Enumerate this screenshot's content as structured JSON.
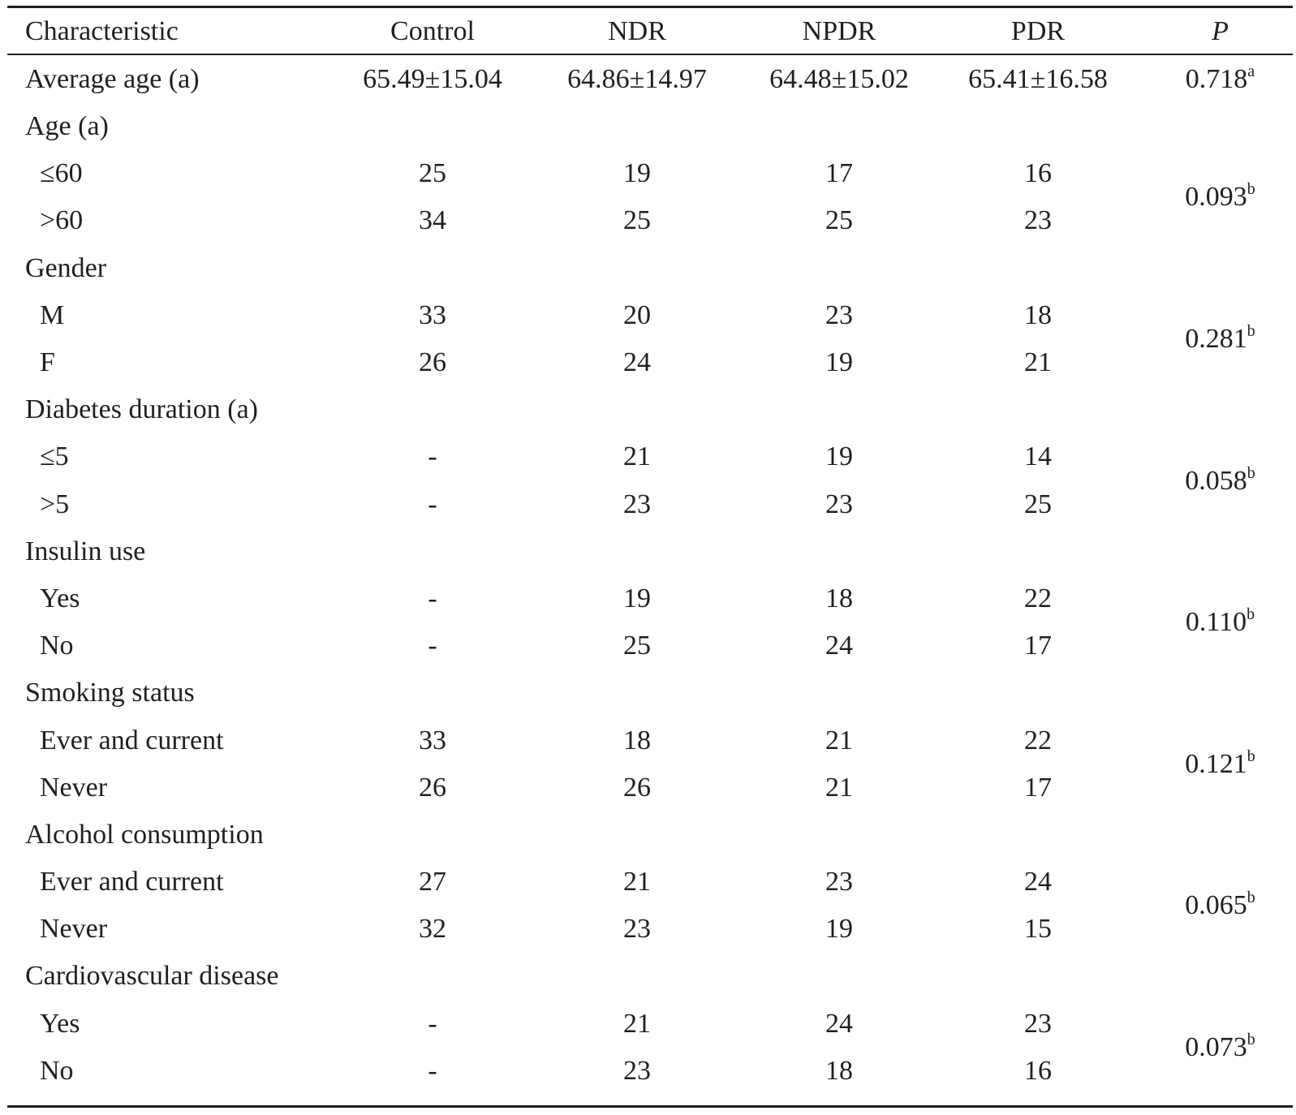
{
  "table": {
    "columns": [
      "Characteristic",
      "Control",
      "NDR",
      "NPDR",
      "PDR",
      "P"
    ],
    "average_age": {
      "label": "Average age (a)",
      "values": [
        "65.49±15.04",
        "64.86±14.97",
        "64.48±15.02",
        "65.41±16.58"
      ],
      "p": "0.718",
      "p_sup": "a"
    },
    "groups": [
      {
        "label": "Age (a)",
        "rows": [
          {
            "label": "≤60",
            "values": [
              "25",
              "19",
              "17",
              "16"
            ]
          },
          {
            "label": ">60",
            "values": [
              "34",
              "25",
              "25",
              "23"
            ]
          }
        ],
        "p": "0.093",
        "p_sup": "b"
      },
      {
        "label": "Gender",
        "rows": [
          {
            "label": "M",
            "values": [
              "33",
              "20",
              "23",
              "18"
            ]
          },
          {
            "label": "F",
            "values": [
              "26",
              "24",
              "19",
              "21"
            ]
          }
        ],
        "p": "0.281",
        "p_sup": "b"
      },
      {
        "label": "Diabetes duration (a)",
        "rows": [
          {
            "label": "≤5",
            "values": [
              "-",
              "21",
              "19",
              "14"
            ]
          },
          {
            "label": ">5",
            "values": [
              "-",
              "23",
              "23",
              "25"
            ]
          }
        ],
        "p": "0.058",
        "p_sup": "b"
      },
      {
        "label": "Insulin use",
        "rows": [
          {
            "label": "Yes",
            "values": [
              "-",
              "19",
              "18",
              "22"
            ]
          },
          {
            "label": "No",
            "values": [
              "-",
              "25",
              "24",
              "17"
            ]
          }
        ],
        "p": "0.110",
        "p_sup": "b"
      },
      {
        "label": "Smoking status",
        "rows": [
          {
            "label": "Ever and current",
            "values": [
              "33",
              "18",
              "21",
              "22"
            ]
          },
          {
            "label": "Never",
            "values": [
              "26",
              "26",
              "21",
              "17"
            ]
          }
        ],
        "p": "0.121",
        "p_sup": "b"
      },
      {
        "label": "Alcohol consumption",
        "rows": [
          {
            "label": "Ever and current",
            "values": [
              "27",
              "21",
              "23",
              "24"
            ]
          },
          {
            "label": "Never",
            "values": [
              "32",
              "23",
              "19",
              "15"
            ]
          }
        ],
        "p": "0.065",
        "p_sup": "b"
      },
      {
        "label": "Cardiovascular disease",
        "rows": [
          {
            "label": "Yes",
            "values": [
              "-",
              "21",
              "24",
              "23"
            ]
          },
          {
            "label": "No",
            "values": [
              "-",
              "23",
              "18",
              "16"
            ]
          }
        ],
        "p": "0.073",
        "p_sup": "b"
      }
    ]
  }
}
